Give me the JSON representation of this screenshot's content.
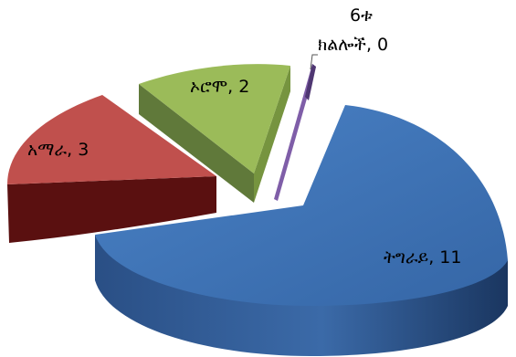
{
  "chart_data": {
    "type": "pie",
    "style": "3d-exploded",
    "slices": [
      {
        "label": "ትግራይ",
        "value": 11,
        "color": "#3f73b6",
        "side_color": "#25497a"
      },
      {
        "label": "6ቱ ክልሎች",
        "value": 0,
        "color": "#7f5ea8",
        "side_color": "#4f3772"
      },
      {
        "label": "ኦሮሞ",
        "value": 2,
        "color": "#9bbb59",
        "side_color": "#60793a"
      },
      {
        "label": "አማራ",
        "value": 3,
        "color": "#c0504d",
        "side_color": "#5a1010"
      }
    ],
    "data_labels": [
      {
        "slice": "ትግራይ",
        "lines": [
          "ትግራይ, 11"
        ]
      },
      {
        "slice": "6ቱ ክልሎች",
        "lines": [
          "6ቱ",
          "ክልሎች, 0"
        ]
      },
      {
        "slice": "ኦሮሞ",
        "lines": [
          "ኦሮሞ, 2"
        ]
      },
      {
        "slice": "አማራ",
        "lines": [
          "አማራ, 3"
        ]
      }
    ]
  }
}
